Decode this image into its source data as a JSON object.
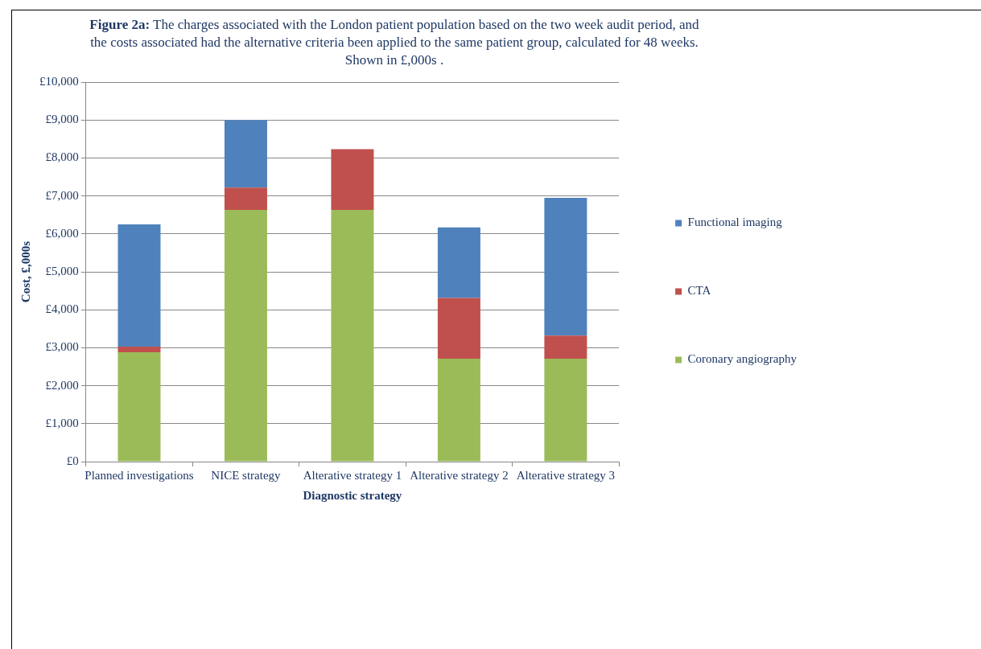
{
  "chart_data": {
    "type": "bar",
    "stacked": true,
    "title": "Figure 2a: The charges associated with the London patient population based on the two week audit period, and the costs associated had the alternative criteria been applied to the same patient group, calculated for 48 weeks.  Shown in £,000s .",
    "xlabel": "Diagnostic strategy",
    "ylabel": "Cost, £,000s",
    "categories": [
      "Planned investigations",
      "NICE strategy",
      "Alterative strategy 1",
      "Alterative strategy 2",
      "Alterative strategy 3"
    ],
    "series": [
      {
        "name": "Coronary angiography",
        "color": "#9bbb59",
        "values": [
          2880,
          6630,
          6630,
          2710,
          2710
        ]
      },
      {
        "name": "CTA",
        "color": "#c0504d",
        "values": [
          150,
          590,
          1600,
          1600,
          610
        ]
      },
      {
        "name": "Functional imaging",
        "color": "#4f81bd",
        "values": [
          3220,
          1780,
          0,
          1860,
          3630
        ]
      }
    ],
    "ylim": [
      0,
      10000
    ],
    "yticks": [
      {
        "value": 0,
        "label": "£0"
      },
      {
        "value": 1000,
        "label": "£1,000"
      },
      {
        "value": 2000,
        "label": "£2,000"
      },
      {
        "value": 3000,
        "label": "£3,000"
      },
      {
        "value": 4000,
        "label": "£4,000"
      },
      {
        "value": 5000,
        "label": "£5,000"
      },
      {
        "value": 6000,
        "label": "£6,000"
      },
      {
        "value": 7000,
        "label": "£7,000"
      },
      {
        "value": 8000,
        "label": "£8,000"
      },
      {
        "value": 9000,
        "label": "£9,000"
      },
      {
        "value": 10000,
        "label": "£10,000"
      }
    ],
    "grid": "y",
    "legend": "right"
  }
}
